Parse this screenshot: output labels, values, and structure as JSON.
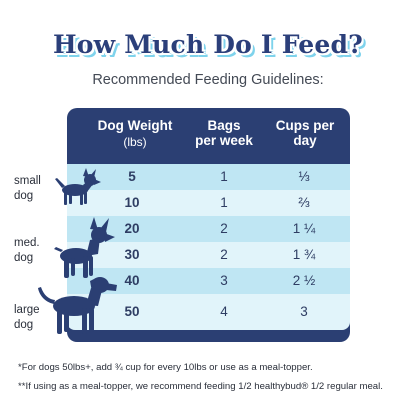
{
  "title": "How Much Do I Feed?",
  "subtitle": "Recommended Feeding Guidelines:",
  "table": {
    "headers": {
      "weight": "Dog Weight",
      "weight_unit": "(lbs)",
      "bags_line1": "Bags",
      "bags_line2": "per week",
      "cups_line1": "Cups per",
      "cups_line2": "day"
    },
    "rows": [
      {
        "weight": "5",
        "bags": "1",
        "cups": "⅓"
      },
      {
        "weight": "10",
        "bags": "1",
        "cups": "⅔"
      },
      {
        "weight": "20",
        "bags": "2",
        "cups": "1 ¼"
      },
      {
        "weight": "30",
        "bags": "2",
        "cups": "1 ¾"
      },
      {
        "weight": "40",
        "bags": "3",
        "cups": "2 ½"
      },
      {
        "weight": "50",
        "bags": "4",
        "cups": "3"
      }
    ]
  },
  "sizes": [
    {
      "line1": "small",
      "line2": "dog"
    },
    {
      "line1": "med.",
      "line2": "dog"
    },
    {
      "line1": "large",
      "line2": "dog"
    }
  ],
  "footnotes": [
    "*For dogs 50lbs+, add ¾ cup for every 10lbs or use as a meal-topper.",
    "**If using as a meal-topper, we recommend feeding 1/2 healthybud® 1/2 regular meal."
  ],
  "colors": {
    "navy": "#2b3f73",
    "row_dark": "#bfe6f3",
    "row_light": "#e1f4fa",
    "accent": "#7fd3ec"
  },
  "icons": [
    "small-dog-icon",
    "medium-dog-icon",
    "large-dog-icon"
  ]
}
